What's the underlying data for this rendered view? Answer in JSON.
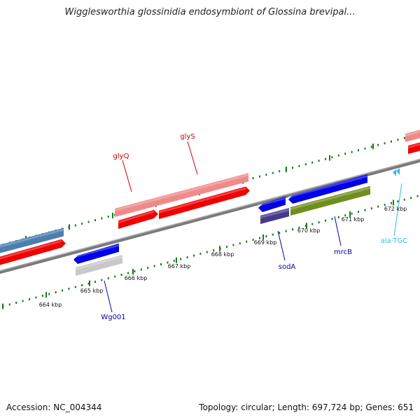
{
  "title": "Wigglesworthia glossinidia endosymbiont of Glossina brevipal...",
  "footer": {
    "accession": "Accession: NC_004344",
    "summary": "Topology: circular; Length: 697,724 bp; Genes: 651"
  },
  "scale_labels": [
    "664 kbp",
    "665 kbp",
    "666 kbp",
    "667 kbp",
    "668 kbp",
    "669 kbp",
    "670 kbp",
    "671 kbp",
    "672 kbp"
  ],
  "gene_labels": {
    "glyQ": "glyQ",
    "glyS": "glyS",
    "sodA": "sodA",
    "mrcB": "mrcB",
    "Wg001": "Wg001",
    "ala_TGC": "ala-TGC"
  },
  "colors": {
    "forward_cds": "#f00000",
    "forward_light": "#f08a8a",
    "reverse_cds": "#0000e8",
    "steel": "#4a7fb0",
    "grey": "#c8c8c8",
    "indigo": "#463a8c",
    "olive": "#6e8f1e",
    "trna": "#30c0d8",
    "backbone": "#808080",
    "tick": "#1a7a1a"
  }
}
